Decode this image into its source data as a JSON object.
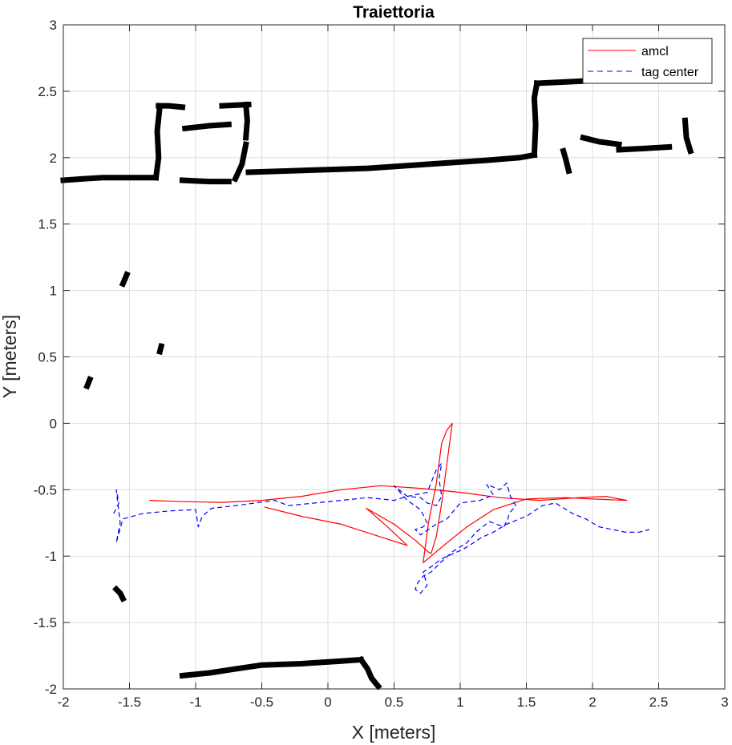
{
  "chart_data": {
    "type": "line",
    "title": "Traiettoria",
    "xlabel": "X [meters]",
    "ylabel": "Y [meters]",
    "xlim": [
      -2,
      3
    ],
    "ylim": [
      -2,
      3
    ],
    "xticks": [
      "-2",
      "-1.5",
      "-1",
      "-0.5",
      "0",
      "0.5",
      "1",
      "1.5",
      "2",
      "2.5",
      "3"
    ],
    "yticks": [
      "-2",
      "-1.5",
      "-1",
      "-0.5",
      "0",
      "0.5",
      "1",
      "1.5",
      "2",
      "2.5",
      "3"
    ],
    "grid": true,
    "legend": {
      "placement": "top-right",
      "entries": [
        {
          "label": "amcl",
          "color": "#ff0000",
          "style": "solid"
        },
        {
          "label": "tag center",
          "color": "#0000ff",
          "style": "dashed"
        }
      ]
    },
    "series": [
      {
        "name": "amcl",
        "color": "#ff0000",
        "style": "solid",
        "x": [
          -1.35,
          -1.1,
          -0.8,
          -0.5,
          -0.2,
          0.1,
          0.4,
          0.7,
          1.0,
          1.3,
          1.6,
          1.9,
          2.1,
          2.26,
          2.0,
          1.8,
          1.5,
          1.25,
          1.05,
          0.9,
          0.78,
          0.72,
          0.76,
          0.82,
          0.86,
          0.9,
          0.94,
          0.9,
          0.86,
          0.82,
          0.78,
          0.76,
          0.66,
          0.5,
          0.29,
          0.45,
          0.6,
          0.35,
          0.1,
          -0.2,
          -0.48
        ],
        "y": [
          -0.58,
          -0.59,
          -0.595,
          -0.58,
          -0.55,
          -0.5,
          -0.47,
          -0.49,
          -0.52,
          -0.56,
          -0.58,
          -0.56,
          -0.55,
          -0.58,
          -0.57,
          -0.56,
          -0.57,
          -0.65,
          -0.78,
          -0.9,
          -1.0,
          -1.05,
          -0.75,
          -0.45,
          -0.15,
          -0.05,
          0.0,
          -0.3,
          -0.6,
          -0.85,
          -0.98,
          -0.97,
          -0.88,
          -0.76,
          -0.64,
          -0.78,
          -0.92,
          -0.84,
          -0.76,
          -0.7,
          -0.63
        ]
      },
      {
        "name": "tag center",
        "color": "#0000ff",
        "style": "dashed",
        "x": [
          -1.62,
          -1.58,
          -1.6,
          -1.57,
          -1.6,
          -1.55,
          -1.4,
          -1.2,
          -1.0,
          -0.98,
          -0.95,
          -0.88,
          -0.7,
          -0.55,
          -0.4,
          -0.3,
          -0.1,
          0.1,
          0.3,
          0.5,
          0.6,
          0.75,
          0.82,
          0.86,
          0.84,
          0.86,
          0.82,
          0.75,
          0.7,
          0.6,
          0.5,
          0.6,
          0.7,
          0.75,
          0.72,
          0.66,
          0.7,
          0.76,
          0.82,
          0.9,
          1.0,
          1.15,
          1.25,
          1.2,
          1.3,
          1.35,
          1.38,
          1.42,
          1.37,
          1.36,
          1.33,
          1.22,
          1.12,
          1.05,
          0.95,
          0.85,
          0.78,
          0.72,
          0.68,
          0.66,
          0.7,
          0.75,
          0.72,
          0.78,
          0.86,
          0.95,
          1.02,
          1.1,
          1.16,
          1.25,
          1.35,
          1.5,
          1.62,
          1.72,
          1.85,
          1.95,
          2.05,
          2.15,
          2.25,
          2.35,
          2.43
        ],
        "y": [
          -0.68,
          -0.6,
          -0.5,
          -0.75,
          -0.9,
          -0.72,
          -0.68,
          -0.66,
          -0.65,
          -0.78,
          -0.7,
          -0.64,
          -0.62,
          -0.6,
          -0.58,
          -0.62,
          -0.6,
          -0.58,
          -0.56,
          -0.58,
          -0.55,
          -0.52,
          -0.35,
          -0.3,
          -0.42,
          -0.55,
          -0.62,
          -0.6,
          -0.56,
          -0.55,
          -0.47,
          -0.58,
          -0.65,
          -0.75,
          -0.78,
          -0.8,
          -0.84,
          -0.8,
          -0.76,
          -0.72,
          -0.6,
          -0.58,
          -0.54,
          -0.46,
          -0.5,
          -0.45,
          -0.55,
          -0.62,
          -0.68,
          -0.72,
          -0.78,
          -0.74,
          -0.82,
          -0.9,
          -0.96,
          -1.05,
          -1.12,
          -1.15,
          -1.2,
          -1.25,
          -1.28,
          -1.22,
          -1.12,
          -1.08,
          -1.02,
          -0.98,
          -0.95,
          -0.9,
          -0.86,
          -0.82,
          -0.76,
          -0.7,
          -0.62,
          -0.6,
          -0.68,
          -0.72,
          -0.78,
          -0.8,
          -0.82,
          -0.82,
          -0.8
        ]
      }
    ],
    "map": {
      "color": "#000000",
      "segments": [
        {
          "x": [
            -2.0,
            -1.85,
            -1.7,
            -1.5,
            -1.3
          ],
          "y": [
            1.83,
            1.84,
            1.85,
            1.85,
            1.85
          ]
        },
        {
          "x": [
            -1.3,
            -1.28,
            -1.29,
            -1.27
          ],
          "y": [
            1.85,
            2.0,
            2.2,
            2.39
          ]
        },
        {
          "x": [
            -1.28,
            -1.2,
            -1.1
          ],
          "y": [
            2.39,
            2.39,
            2.38
          ]
        },
        {
          "x": [
            -1.08,
            -0.9,
            -0.75
          ],
          "y": [
            2.22,
            2.24,
            2.25
          ]
        },
        {
          "x": [
            -0.8,
            -0.6
          ],
          "y": [
            2.39,
            2.4
          ]
        },
        {
          "x": [
            -0.62,
            -0.61,
            -0.62
          ],
          "y": [
            2.4,
            2.28,
            2.15
          ]
        },
        {
          "x": [
            -0.62,
            -0.65,
            -0.7
          ],
          "y": [
            2.1,
            1.95,
            1.84
          ]
        },
        {
          "x": [
            -1.1,
            -0.9,
            -0.75
          ],
          "y": [
            1.83,
            1.82,
            1.82
          ]
        },
        {
          "x": [
            -0.6,
            -0.3,
            0.0,
            0.3,
            0.6,
            0.9,
            1.2,
            1.45,
            1.56
          ],
          "y": [
            1.89,
            1.9,
            1.91,
            1.92,
            1.94,
            1.96,
            1.98,
            2.0,
            2.02
          ]
        },
        {
          "x": [
            1.56,
            1.57,
            1.56,
            1.58
          ],
          "y": [
            2.02,
            2.25,
            2.45,
            2.56
          ]
        },
        {
          "x": [
            1.58,
            1.8,
            2.0,
            2.3,
            2.56
          ],
          "y": [
            2.56,
            2.57,
            2.58,
            2.58,
            2.59
          ]
        },
        {
          "x": [
            1.93,
            2.05,
            2.2
          ],
          "y": [
            2.15,
            2.12,
            2.1
          ]
        },
        {
          "x": [
            2.2,
            2.4,
            2.58
          ],
          "y": [
            2.06,
            2.07,
            2.08
          ]
        },
        {
          "x": [
            2.7,
            2.71,
            2.74
          ],
          "y": [
            2.28,
            2.15,
            2.05
          ]
        },
        {
          "x": [
            1.78,
            1.8,
            1.82
          ],
          "y": [
            2.05,
            1.98,
            1.9
          ]
        },
        {
          "x": [
            -1.55,
            -1.52
          ],
          "y": [
            1.05,
            1.12
          ]
        },
        {
          "x": [
            -1.27,
            -1.26
          ],
          "y": [
            0.54,
            0.58
          ]
        },
        {
          "x": [
            -1.82,
            -1.8
          ],
          "y": [
            0.28,
            0.33
          ]
        },
        {
          "x": [
            -1.6,
            -1.57,
            -1.55
          ],
          "y": [
            -1.25,
            -1.28,
            -1.32
          ]
        },
        {
          "x": [
            -1.1,
            -0.9,
            -0.7,
            -0.5,
            -0.2,
            0.1,
            0.25
          ],
          "y": [
            -1.9,
            -1.88,
            -1.85,
            -1.82,
            -1.81,
            -1.79,
            -1.78
          ]
        },
        {
          "x": [
            0.25,
            0.3,
            0.33,
            0.38
          ],
          "y": [
            -1.78,
            -1.85,
            -1.92,
            -1.98
          ]
        }
      ]
    }
  }
}
